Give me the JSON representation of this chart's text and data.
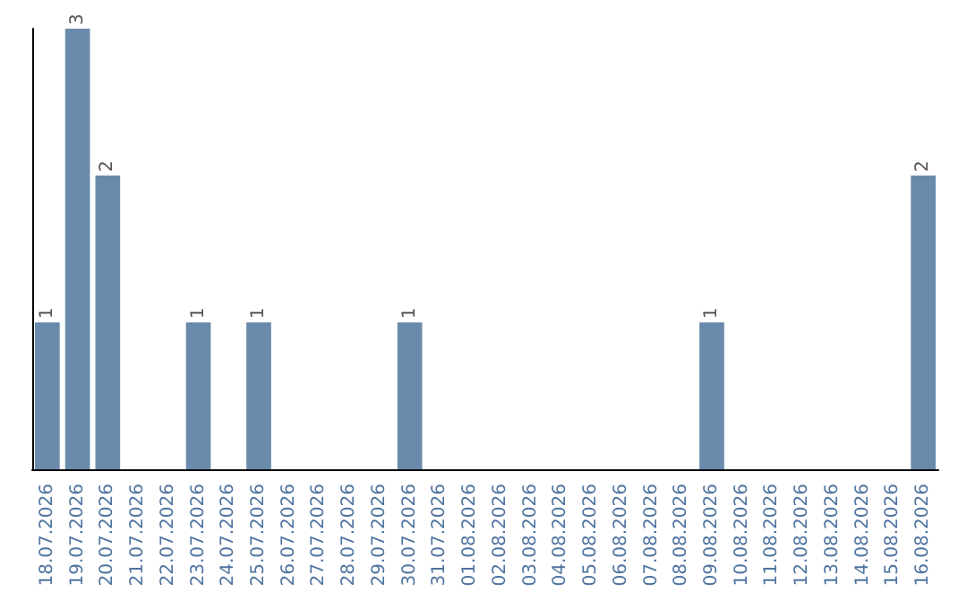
{
  "chart_data": {
    "type": "bar",
    "categories": [
      "18.07.2026",
      "19.07.2026",
      "20.07.2026",
      "21.07.2026",
      "22.07.2026",
      "23.07.2026",
      "24.07.2026",
      "25.07.2026",
      "26.07.2026",
      "27.07.2026",
      "28.07.2026",
      "29.07.2026",
      "30.07.2026",
      "31.07.2026",
      "01.08.2026",
      "02.08.2026",
      "03.08.2026",
      "04.08.2026",
      "05.08.2026",
      "06.08.2026",
      "07.08.2026",
      "08.08.2026",
      "09.08.2026",
      "10.08.2026",
      "11.08.2026",
      "12.08.2026",
      "13.08.2026",
      "14.08.2026",
      "15.08.2026",
      "16.08.2026"
    ],
    "values": [
      1,
      3,
      2,
      0,
      0,
      1,
      0,
      1,
      0,
      0,
      0,
      0,
      1,
      0,
      0,
      0,
      0,
      0,
      0,
      0,
      0,
      0,
      1,
      0,
      0,
      0,
      0,
      0,
      0,
      2
    ],
    "value_labels": [
      "1",
      "3",
      "2",
      null,
      null,
      "1",
      null,
      "1",
      null,
      null,
      null,
      null,
      "1",
      null,
      null,
      null,
      null,
      null,
      null,
      null,
      null,
      null,
      "1",
      null,
      null,
      null,
      null,
      null,
      null,
      "2"
    ],
    "color": "#6a8aab",
    "grid": false,
    "tick_labels": "x"
  }
}
